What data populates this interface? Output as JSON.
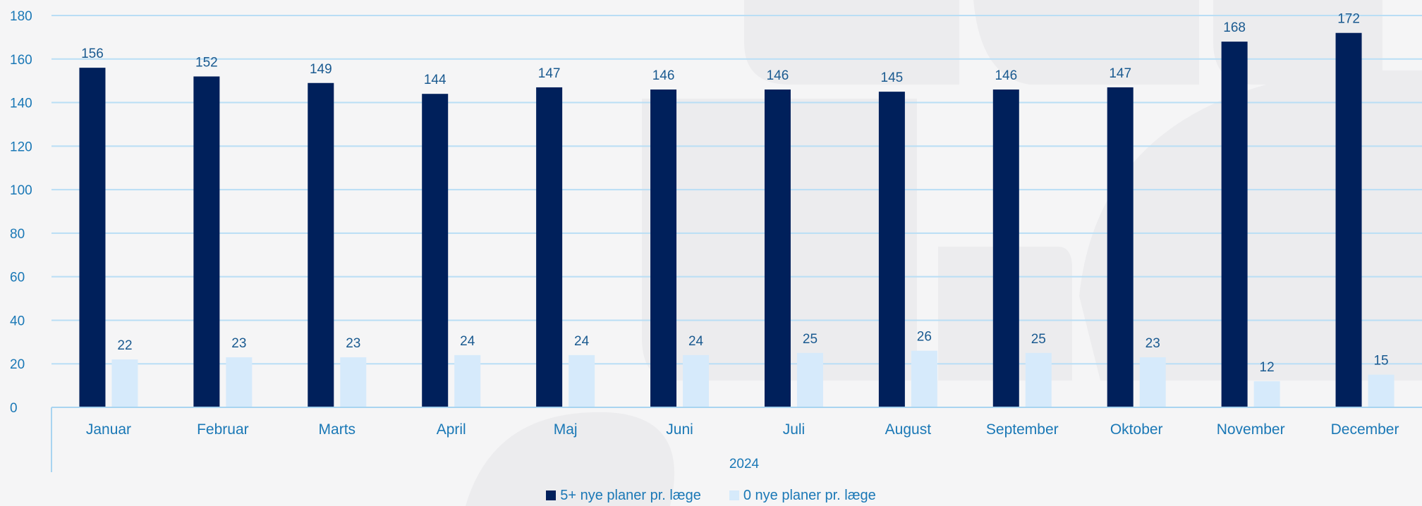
{
  "chart_data": {
    "type": "bar",
    "title": "",
    "xlabel": "",
    "ylabel": "",
    "group_label": "2024",
    "categories": [
      "Januar",
      "Februar",
      "Marts",
      "April",
      "Maj",
      "Juni",
      "Juli",
      "August",
      "September",
      "Oktober",
      "November",
      "December"
    ],
    "series": [
      {
        "name": "5+ nye planer pr. læge",
        "color": "#00205b",
        "values": [
          156,
          152,
          149,
          144,
          147,
          146,
          146,
          145,
          146,
          147,
          168,
          172
        ]
      },
      {
        "name": "0 nye planer pr. læge",
        "color": "#d6eafb",
        "values": [
          22,
          23,
          23,
          24,
          24,
          24,
          25,
          26,
          25,
          23,
          12,
          15
        ]
      }
    ],
    "ylim": [
      0,
      180
    ],
    "yticks": [
      0,
      20,
      40,
      60,
      80,
      100,
      120,
      140,
      160,
      180
    ],
    "grid": true,
    "legend_position": "bottom"
  }
}
